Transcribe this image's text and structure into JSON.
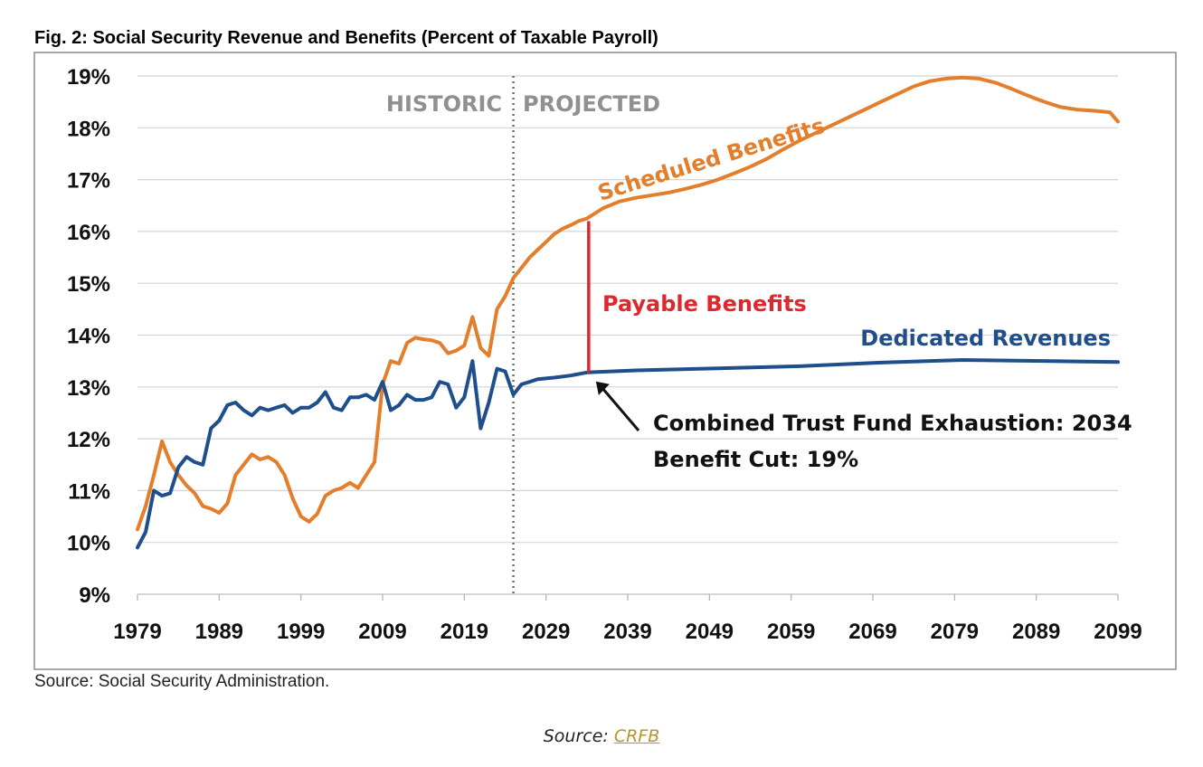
{
  "figure": {
    "title": "Fig. 2: Social Security Revenue and Benefits (Percent of Taxable Payroll)",
    "source_note": "Source: Social Security Administration."
  },
  "caption": {
    "prefix": "Source: ",
    "link_text": "CRFB",
    "link_color": "#b8952a"
  },
  "chart_data": {
    "type": "line",
    "title": "Fig. 2: Social Security Revenue and Benefits (Percent of Taxable Payroll)",
    "xlabel": "",
    "ylabel": "",
    "xlim": [
      1979,
      2099
    ],
    "ylim": [
      9,
      19
    ],
    "x_ticks": [
      1979,
      1989,
      1999,
      2009,
      2019,
      2029,
      2039,
      2049,
      2059,
      2069,
      2079,
      2089,
      2099
    ],
    "x_tick_labels": [
      "1979",
      "1989",
      "1999",
      "2009",
      "2019",
      "2029",
      "2039",
      "2049",
      "2059",
      "2069",
      "2079",
      "2089",
      "2099"
    ],
    "y_ticks": [
      9,
      10,
      11,
      12,
      13,
      14,
      15,
      16,
      17,
      18,
      19
    ],
    "y_tick_labels": [
      "9%",
      "10%",
      "11%",
      "12%",
      "13%",
      "14%",
      "15%",
      "16%",
      "17%",
      "18%",
      "19%"
    ],
    "grid": "horizontal",
    "legend": "none",
    "series": [
      {
        "name": "Scheduled Benefits",
        "color": "#e47e2b",
        "points": [
          [
            1979,
            10.25
          ],
          [
            1980,
            10.7
          ],
          [
            1981,
            11.3
          ],
          [
            1982,
            11.95
          ],
          [
            1983,
            11.55
          ],
          [
            1984,
            11.3
          ],
          [
            1985,
            11.1
          ],
          [
            1986,
            10.95
          ],
          [
            1987,
            10.7
          ],
          [
            1988,
            10.65
          ],
          [
            1989,
            10.57
          ],
          [
            1990,
            10.75
          ],
          [
            1991,
            11.3
          ],
          [
            1992,
            11.5
          ],
          [
            1993,
            11.7
          ],
          [
            1994,
            11.6
          ],
          [
            1995,
            11.65
          ],
          [
            1996,
            11.55
          ],
          [
            1997,
            11.3
          ],
          [
            1998,
            10.85
          ],
          [
            1999,
            10.5
          ],
          [
            2000,
            10.4
          ],
          [
            2001,
            10.55
          ],
          [
            2002,
            10.9
          ],
          [
            2003,
            11.0
          ],
          [
            2004,
            11.05
          ],
          [
            2005,
            11.15
          ],
          [
            2006,
            11.05
          ],
          [
            2007,
            11.3
          ],
          [
            2008,
            11.55
          ],
          [
            2009,
            13.05
          ],
          [
            2010,
            13.5
          ],
          [
            2011,
            13.45
          ],
          [
            2012,
            13.85
          ],
          [
            2013,
            13.95
          ],
          [
            2014,
            13.92
          ],
          [
            2015,
            13.9
          ],
          [
            2016,
            13.85
          ],
          [
            2017,
            13.65
          ],
          [
            2018,
            13.7
          ],
          [
            2019,
            13.8
          ],
          [
            2020,
            14.35
          ],
          [
            2021,
            13.75
          ],
          [
            2022,
            13.6
          ],
          [
            2023,
            14.5
          ],
          [
            2024,
            14.75
          ],
          [
            2025,
            15.1
          ],
          [
            2026,
            15.3
          ],
          [
            2027,
            15.5
          ],
          [
            2028,
            15.65
          ],
          [
            2029,
            15.8
          ],
          [
            2030,
            15.95
          ],
          [
            2031,
            16.05
          ],
          [
            2032,
            16.12
          ],
          [
            2033,
            16.2
          ],
          [
            2034,
            16.25
          ],
          [
            2036,
            16.45
          ],
          [
            2038,
            16.58
          ],
          [
            2040,
            16.65
          ],
          [
            2042,
            16.7
          ],
          [
            2044,
            16.75
          ],
          [
            2046,
            16.82
          ],
          [
            2048,
            16.9
          ],
          [
            2050,
            17.0
          ],
          [
            2052,
            17.12
          ],
          [
            2054,
            17.25
          ],
          [
            2056,
            17.4
          ],
          [
            2058,
            17.58
          ],
          [
            2060,
            17.75
          ],
          [
            2062,
            17.9
          ],
          [
            2064,
            18.05
          ],
          [
            2066,
            18.2
          ],
          [
            2068,
            18.35
          ],
          [
            2070,
            18.5
          ],
          [
            2072,
            18.65
          ],
          [
            2074,
            18.8
          ],
          [
            2076,
            18.9
          ],
          [
            2078,
            18.95
          ],
          [
            2080,
            18.97
          ],
          [
            2082,
            18.95
          ],
          [
            2084,
            18.87
          ],
          [
            2086,
            18.75
          ],
          [
            2088,
            18.62
          ],
          [
            2090,
            18.5
          ],
          [
            2092,
            18.4
          ],
          [
            2094,
            18.35
          ],
          [
            2096,
            18.33
          ],
          [
            2098,
            18.3
          ],
          [
            2099,
            18.12
          ]
        ]
      },
      {
        "name": "Dedicated Revenues",
        "color": "#1f4e8c",
        "points": [
          [
            1979,
            9.9
          ],
          [
            1980,
            10.2
          ],
          [
            1981,
            11.0
          ],
          [
            1982,
            10.9
          ],
          [
            1983,
            10.95
          ],
          [
            1984,
            11.45
          ],
          [
            1985,
            11.65
          ],
          [
            1986,
            11.55
          ],
          [
            1987,
            11.5
          ],
          [
            1988,
            12.2
          ],
          [
            1989,
            12.35
          ],
          [
            1990,
            12.65
          ],
          [
            1991,
            12.7
          ],
          [
            1992,
            12.55
          ],
          [
            1993,
            12.45
          ],
          [
            1994,
            12.6
          ],
          [
            1995,
            12.55
          ],
          [
            1996,
            12.6
          ],
          [
            1997,
            12.65
          ],
          [
            1998,
            12.5
          ],
          [
            1999,
            12.6
          ],
          [
            2000,
            12.6
          ],
          [
            2001,
            12.7
          ],
          [
            2002,
            12.9
          ],
          [
            2003,
            12.6
          ],
          [
            2004,
            12.55
          ],
          [
            2005,
            12.8
          ],
          [
            2006,
            12.8
          ],
          [
            2007,
            12.85
          ],
          [
            2008,
            12.75
          ],
          [
            2009,
            13.1
          ],
          [
            2010,
            12.55
          ],
          [
            2011,
            12.65
          ],
          [
            2012,
            12.85
          ],
          [
            2013,
            12.75
          ],
          [
            2014,
            12.75
          ],
          [
            2015,
            12.8
          ],
          [
            2016,
            13.1
          ],
          [
            2017,
            13.05
          ],
          [
            2018,
            12.6
          ],
          [
            2019,
            12.8
          ],
          [
            2020,
            13.5
          ],
          [
            2021,
            12.2
          ],
          [
            2022,
            12.7
          ],
          [
            2023,
            13.35
          ],
          [
            2024,
            13.3
          ],
          [
            2025,
            12.85
          ],
          [
            2026,
            13.05
          ],
          [
            2027,
            13.1
          ],
          [
            2028,
            13.15
          ],
          [
            2030,
            13.18
          ],
          [
            2032,
            13.22
          ],
          [
            2034,
            13.28
          ],
          [
            2040,
            13.32
          ],
          [
            2050,
            13.36
          ],
          [
            2060,
            13.4
          ],
          [
            2070,
            13.47
          ],
          [
            2080,
            13.52
          ],
          [
            2090,
            13.5
          ],
          [
            2099,
            13.48
          ]
        ]
      }
    ],
    "annotations": {
      "historic_label": "HISTORIC",
      "projected_label": "PROJECTED",
      "divider_year": 2025,
      "scheduled_label": "Scheduled Benefits",
      "payable_label": "Payable Benefits",
      "payable_gap_year": 2034,
      "payable_gap_top": 16.2,
      "payable_gap_bottom": 13.28,
      "payable_color": "#e0272e",
      "revenues_label": "Dedicated Revenues",
      "exhaustion_line1": "Combined Trust Fund Exhaustion: 2034",
      "exhaustion_line2": "Benefit Cut: 19%",
      "historic_color": "#909090"
    }
  }
}
